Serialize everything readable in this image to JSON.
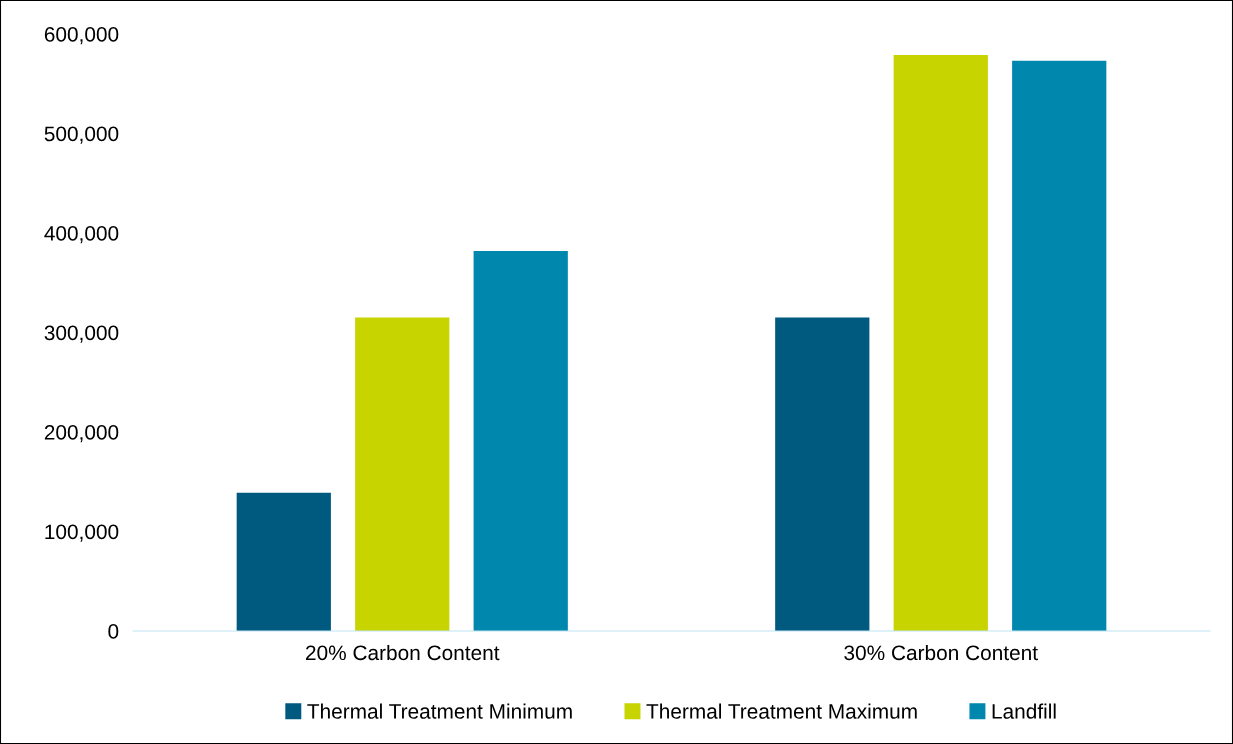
{
  "chart_data": {
    "type": "bar",
    "categories": [
      "20% Carbon Content",
      "30% Carbon Content"
    ],
    "series": [
      {
        "name": "Thermal Treatment Minimum",
        "color": "#005a80",
        "values": [
          139000,
          315000
        ]
      },
      {
        "name": "Thermal Treatment Maximum",
        "color": "#c8d400",
        "values": [
          315000,
          579000
        ]
      },
      {
        "name": "Landfill",
        "color": "#0087ad",
        "values": [
          382000,
          573000
        ]
      }
    ],
    "ylim": [
      0,
      600000
    ],
    "yticks": [
      {
        "value": 0,
        "label": "0"
      },
      {
        "value": 100000,
        "label": "100,000"
      },
      {
        "value": 200000,
        "label": "200,000"
      },
      {
        "value": 300000,
        "label": "300,000"
      },
      {
        "value": 400000,
        "label": "400,000"
      },
      {
        "value": 500000,
        "label": "500,000"
      },
      {
        "value": 600000,
        "label": "600,000"
      }
    ],
    "grid": false,
    "legend": "bottom"
  }
}
